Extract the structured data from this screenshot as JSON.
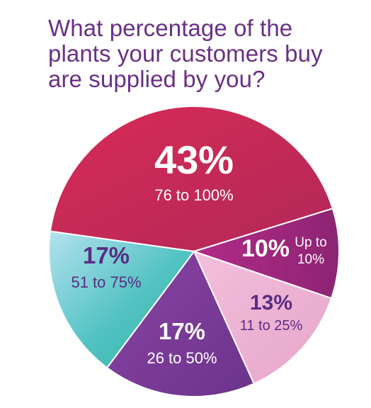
{
  "title_lines": [
    "What percentage of the",
    "plants your customers buy",
    "are supplied by you?"
  ],
  "chart_data": {
    "type": "pie",
    "title": "What percentage of the plants your customers buy are supplied by you?",
    "slices": [
      {
        "pct_label": "43%",
        "category_lines": [
          "76 to 100%"
        ],
        "value": 43,
        "color": "#c72a55",
        "label_color": "#ffffff"
      },
      {
        "pct_label": "10%",
        "category_lines": [
          "Up to",
          "10%"
        ],
        "value": 10,
        "color": "#a1287e",
        "label_color": "#ffffff"
      },
      {
        "pct_label": "13%",
        "category_lines": [
          "11 to 25%"
        ],
        "value": 13,
        "color": "#eeb2d2",
        "label_color": "#5a2c82"
      },
      {
        "pct_label": "17%",
        "category_lines": [
          "26 to 50%"
        ],
        "value": 17,
        "color": "#7b3c98",
        "label_color": "#ffffff"
      },
      {
        "pct_label": "17%",
        "category_lines": [
          "51 to 75%"
        ],
        "value": 17,
        "color": "#74cdd0",
        "label_color": "#5a2c82"
      }
    ]
  }
}
